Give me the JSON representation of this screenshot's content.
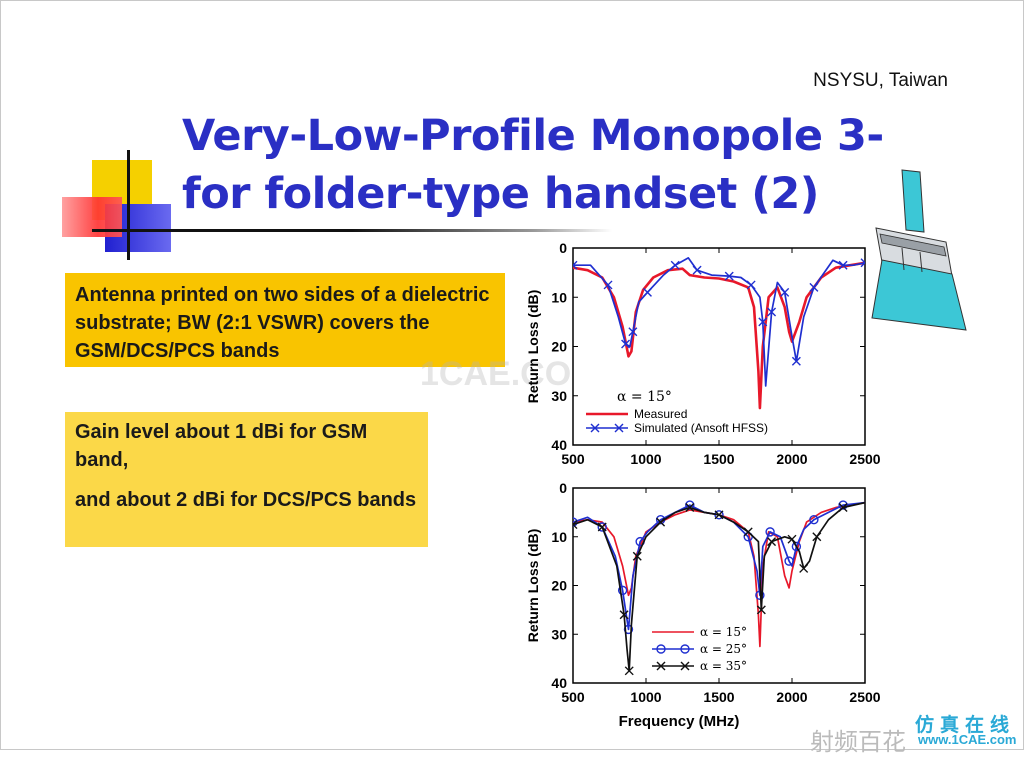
{
  "slide": {
    "affiliation": "NSYSU, Taiwan",
    "title_line1": "Very-Low-Profile Monopole 3-",
    "title_line2": "for folder-type handset (2)",
    "box1_text": "Antenna printed on two sides of a dielectric substrate; BW (2:1 VSWR) covers the GSM/DCS/PCS bands",
    "box2_line1": "Gain level about 1 dBi for GSM band,",
    "box2_line2": "and about 2 dBi for DCS/PCS bands",
    "watermark": "1CAE.COM",
    "footer_brand": "射频百花",
    "stamp_cn": "仿真在线",
    "stamp_url": "www.1CAE.com"
  },
  "chart_data": [
    {
      "type": "line",
      "title": "",
      "xlabel": "",
      "ylabel": "Return Loss (dB)",
      "xlim": [
        500,
        2500
      ],
      "ylim": [
        0,
        40
      ],
      "y_inverted": true,
      "xticks": [
        500,
        1000,
        1500,
        2000,
        2500
      ],
      "yticks": [
        0,
        10,
        20,
        30,
        40
      ],
      "annotation": "α = 15°",
      "legend": [
        "Measured",
        "Simulated (Ansoft HFSS)"
      ],
      "series": [
        {
          "name": "Measured",
          "color": "#e8182a",
          "marker": "none",
          "x": [
            500,
            600,
            700,
            780,
            840,
            880,
            900,
            930,
            980,
            1050,
            1150,
            1250,
            1300,
            1400,
            1500,
            1600,
            1700,
            1740,
            1770,
            1780,
            1800,
            1840,
            1900,
            1950,
            1980,
            2000,
            2050,
            2100,
            2200,
            2300,
            2400,
            2500
          ],
          "y": [
            4,
            4.5,
            6,
            10,
            16,
            22,
            21,
            13,
            8.5,
            6,
            4.5,
            4.2,
            5.5,
            6,
            6.2,
            6.8,
            8,
            12,
            25,
            32.5,
            20,
            10,
            8,
            12,
            17,
            19,
            15,
            10,
            6,
            4,
            3.5,
            3
          ]
        },
        {
          "name": "Simulated (Ansoft HFSS)",
          "color": "#1f2fd0",
          "marker": "x",
          "x": [
            500,
            620,
            740,
            810,
            860,
            890,
            910,
            950,
            1010,
            1120,
            1200,
            1290,
            1350,
            1450,
            1570,
            1650,
            1720,
            1780,
            1800,
            1820,
            1860,
            1900,
            1950,
            2000,
            2030,
            2080,
            2150,
            2280,
            2350,
            2420,
            2500
          ],
          "y": [
            3.5,
            3.5,
            7.5,
            14,
            19.5,
            20,
            17,
            11,
            9,
            5.5,
            3.5,
            2,
            4.5,
            5.5,
            5.7,
            6,
            7.5,
            10,
            15,
            28,
            13,
            7,
            9,
            18,
            23,
            14,
            8,
            2.5,
            3.5,
            3.5,
            3
          ]
        }
      ]
    },
    {
      "type": "line",
      "title": "",
      "xlabel": "Frequency (MHz)",
      "ylabel": "Return Loss (dB)",
      "xlim": [
        500,
        2500
      ],
      "ylim": [
        0,
        40
      ],
      "y_inverted": true,
      "xticks": [
        500,
        1000,
        1500,
        2000,
        2500
      ],
      "yticks": [
        0,
        10,
        20,
        30,
        40
      ],
      "legend": [
        "α = 15°",
        "α = 25°",
        "α = 35°"
      ],
      "series": [
        {
          "name": "α = 15°",
          "color": "#e8182a",
          "marker": "none",
          "x": [
            500,
            600,
            700,
            780,
            840,
            880,
            900,
            930,
            1000,
            1100,
            1200,
            1300,
            1400,
            1500,
            1600,
            1700,
            1740,
            1770,
            1780,
            1800,
            1840,
            1900,
            1950,
            1980,
            2000,
            2050,
            2100,
            2200,
            2300,
            2400,
            2500
          ],
          "y": [
            7,
            6.5,
            7,
            10,
            16,
            22,
            20.5,
            14,
            9,
            7,
            5.5,
            4.5,
            5,
            5.5,
            6.5,
            9,
            14,
            26,
            32.5,
            16,
            9,
            10,
            18,
            20.5,
            17,
            11,
            7,
            5,
            4,
            3.5,
            3
          ]
        },
        {
          "name": "α = 25°",
          "color": "#1f2fd0",
          "marker": "o",
          "x": [
            500,
            600,
            700,
            790,
            840,
            870,
            880,
            910,
            960,
            1010,
            1100,
            1200,
            1300,
            1400,
            1500,
            1600,
            1700,
            1760,
            1780,
            1800,
            1850,
            1920,
            1980,
            2000,
            2030,
            2080,
            2150,
            2250,
            2350,
            2500
          ],
          "y": [
            7,
            6,
            8,
            14,
            21,
            27,
            29,
            18,
            11,
            9,
            6.5,
            5,
            3.5,
            5,
            5.5,
            7,
            10,
            17,
            22,
            12,
            9,
            10,
            15,
            16,
            12,
            8.5,
            6.5,
            5,
            3.5,
            3
          ]
        },
        {
          "name": "α = 35°",
          "color": "#111111",
          "marker": "x",
          "x": [
            500,
            600,
            700,
            800,
            850,
            870,
            885,
            900,
            940,
            1000,
            1100,
            1200,
            1300,
            1400,
            1500,
            1600,
            1700,
            1770,
            1790,
            1810,
            1860,
            1950,
            2000,
            2050,
            2080,
            2120,
            2170,
            2250,
            2350,
            2500
          ],
          "y": [
            7.5,
            6.5,
            8,
            16,
            26,
            33,
            37.5,
            28,
            14,
            10,
            7,
            5,
            4,
            5,
            5.5,
            7,
            9,
            11,
            25,
            14,
            11,
            10,
            10.5,
            13,
            16.5,
            15,
            10,
            6.5,
            4,
            3
          ]
        }
      ]
    }
  ]
}
